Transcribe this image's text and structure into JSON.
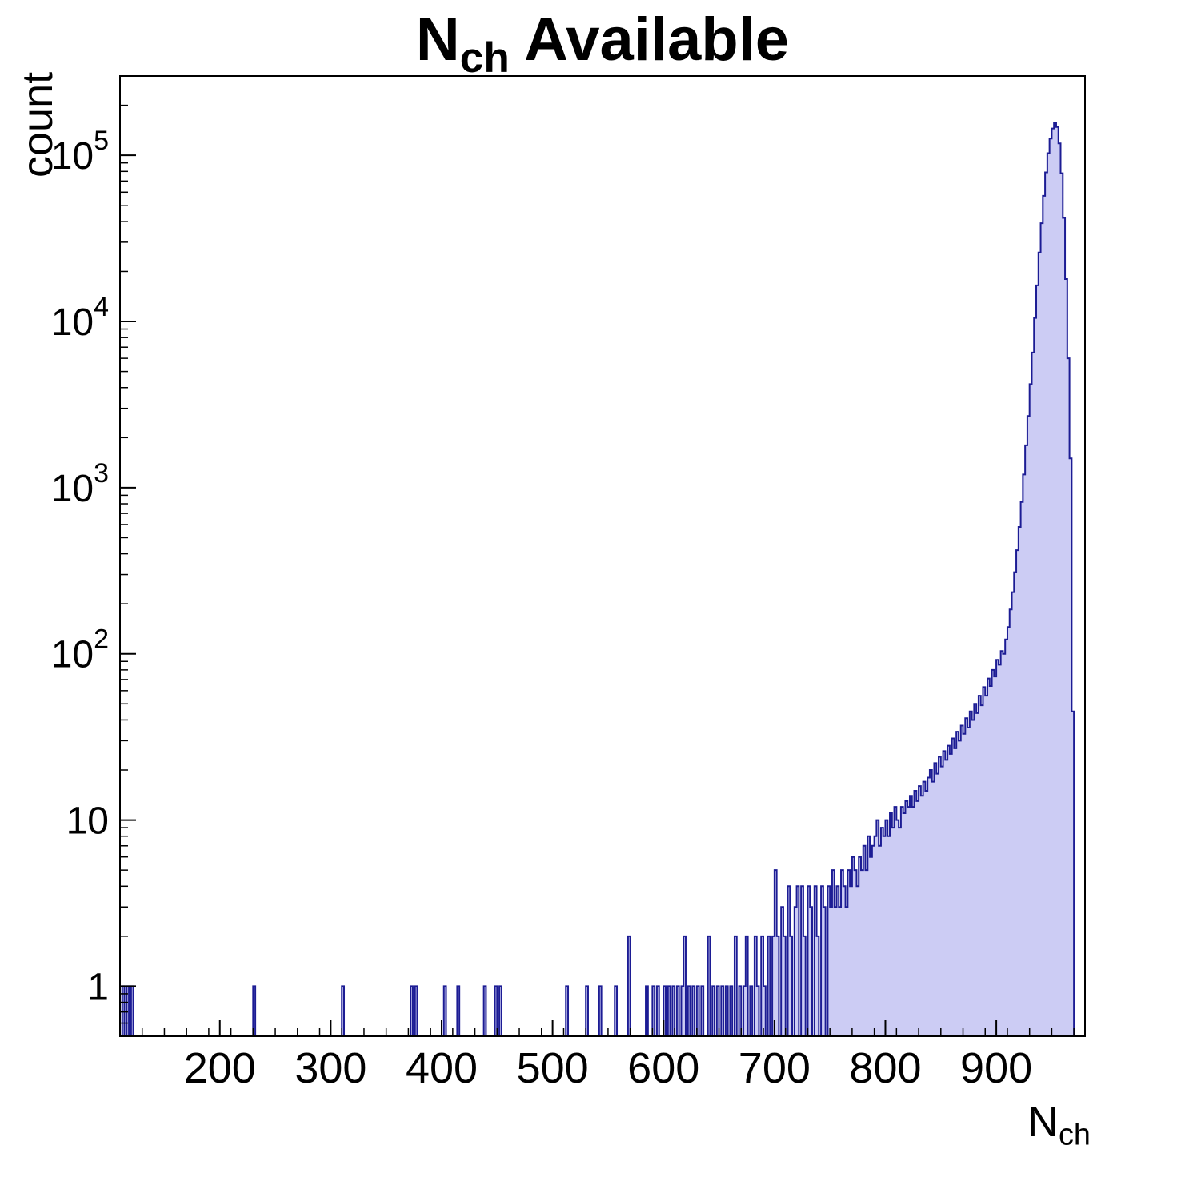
{
  "labels": {
    "title_main": "N",
    "title_sub": "ch",
    "title_rest": " Available",
    "xlabel_main": "N",
    "xlabel_sub": "ch",
    "ylabel": "count"
  },
  "chart_data": {
    "type": "bar",
    "title": "N_ch Available",
    "xlabel": "N_ch",
    "ylabel": "count",
    "y_scale": "log",
    "grid": "off",
    "legend": "none",
    "x_range": [
      110,
      980
    ],
    "y_range": [
      0.5,
      300000
    ],
    "bin_width": 2,
    "x_ticks": [
      200,
      300,
      400,
      500,
      600,
      700,
      800,
      900
    ],
    "x_minor_step": 20,
    "y_ticks": [
      {
        "v": 1,
        "label": "1"
      },
      {
        "v": 10,
        "label": "10"
      },
      {
        "v": 100,
        "base": "10",
        "exp": "2"
      },
      {
        "v": 1000,
        "base": "10",
        "exp": "3"
      },
      {
        "v": 10000,
        "base": "10",
        "exp": "4"
      },
      {
        "v": 100000,
        "base": "10",
        "exp": "5"
      }
    ],
    "fill_color": "#ccccf4",
    "line_color": "#1c1c94",
    "frame_color": "#000000",
    "bins": [
      [
        112,
        1
      ],
      [
        116,
        1
      ],
      [
        120,
        1
      ],
      [
        230,
        1
      ],
      [
        310,
        1
      ],
      [
        372,
        1
      ],
      [
        376,
        1
      ],
      [
        402,
        1
      ],
      [
        414,
        1
      ],
      [
        438,
        1
      ],
      [
        448,
        1
      ],
      [
        452,
        1
      ],
      [
        512,
        1
      ],
      [
        530,
        1
      ],
      [
        542,
        1
      ],
      [
        556,
        1
      ],
      [
        568,
        2
      ],
      [
        584,
        1
      ],
      [
        590,
        1
      ],
      [
        594,
        1
      ],
      [
        600,
        1
      ],
      [
        604,
        1
      ],
      [
        608,
        1
      ],
      [
        612,
        1
      ],
      [
        616,
        1
      ],
      [
        618,
        2
      ],
      [
        622,
        1
      ],
      [
        626,
        1
      ],
      [
        630,
        1
      ],
      [
        634,
        1
      ],
      [
        640,
        2
      ],
      [
        644,
        1
      ],
      [
        648,
        1
      ],
      [
        652,
        1
      ],
      [
        656,
        1
      ],
      [
        660,
        1
      ],
      [
        664,
        2
      ],
      [
        668,
        1
      ],
      [
        672,
        1
      ],
      [
        674,
        2
      ],
      [
        678,
        1
      ],
      [
        682,
        2
      ],
      [
        684,
        1
      ],
      [
        688,
        2
      ],
      [
        690,
        1
      ],
      [
        694,
        2
      ],
      [
        698,
        2
      ],
      [
        700,
        5
      ],
      [
        702,
        2
      ],
      [
        706,
        3
      ],
      [
        708,
        2
      ],
      [
        712,
        4
      ],
      [
        714,
        2
      ],
      [
        718,
        3
      ],
      [
        720,
        4
      ],
      [
        724,
        4
      ],
      [
        726,
        2
      ],
      [
        730,
        4
      ],
      [
        732,
        3
      ],
      [
        736,
        4
      ],
      [
        738,
        2
      ],
      [
        742,
        4
      ],
      [
        744,
        3
      ],
      [
        748,
        4
      ],
      [
        750,
        3
      ],
      [
        752,
        5
      ],
      [
        754,
        3
      ],
      [
        756,
        4
      ],
      [
        758,
        3
      ],
      [
        760,
        5
      ],
      [
        762,
        4
      ],
      [
        764,
        3
      ],
      [
        766,
        5
      ],
      [
        768,
        4
      ],
      [
        770,
        6
      ],
      [
        772,
        5
      ],
      [
        774,
        4
      ],
      [
        776,
        6
      ],
      [
        778,
        5
      ],
      [
        780,
        7
      ],
      [
        782,
        5
      ],
      [
        784,
        8
      ],
      [
        786,
        6
      ],
      [
        788,
        7
      ],
      [
        790,
        8
      ],
      [
        792,
        10
      ],
      [
        794,
        7
      ],
      [
        796,
        9
      ],
      [
        798,
        8
      ],
      [
        800,
        10
      ],
      [
        802,
        8
      ],
      [
        804,
        11
      ],
      [
        806,
        9
      ],
      [
        808,
        12
      ],
      [
        810,
        10
      ],
      [
        812,
        9
      ],
      [
        814,
        12
      ],
      [
        816,
        11
      ],
      [
        818,
        13
      ],
      [
        820,
        12
      ],
      [
        822,
        14
      ],
      [
        824,
        12
      ],
      [
        826,
        15
      ],
      [
        828,
        13
      ],
      [
        830,
        16
      ],
      [
        832,
        14
      ],
      [
        834,
        17
      ],
      [
        836,
        15
      ],
      [
        838,
        18
      ],
      [
        840,
        20
      ],
      [
        842,
        17
      ],
      [
        844,
        22
      ],
      [
        846,
        19
      ],
      [
        848,
        24
      ],
      [
        850,
        21
      ],
      [
        852,
        26
      ],
      [
        854,
        23
      ],
      [
        856,
        28
      ],
      [
        858,
        25
      ],
      [
        860,
        31
      ],
      [
        862,
        27
      ],
      [
        864,
        34
      ],
      [
        866,
        30
      ],
      [
        868,
        37
      ],
      [
        870,
        33
      ],
      [
        872,
        41
      ],
      [
        874,
        36
      ],
      [
        876,
        45
      ],
      [
        878,
        40
      ],
      [
        880,
        50
      ],
      [
        882,
        44
      ],
      [
        884,
        56
      ],
      [
        886,
        49
      ],
      [
        888,
        63
      ],
      [
        890,
        56
      ],
      [
        892,
        71
      ],
      [
        894,
        64
      ],
      [
        896,
        80
      ],
      [
        898,
        73
      ],
      [
        900,
        92
      ],
      [
        902,
        86
      ],
      [
        904,
        104
      ],
      [
        906,
        100
      ],
      [
        908,
        122
      ],
      [
        910,
        145
      ],
      [
        912,
        185
      ],
      [
        914,
        235
      ],
      [
        916,
        310
      ],
      [
        918,
        420
      ],
      [
        920,
        580
      ],
      [
        922,
        820
      ],
      [
        924,
        1200
      ],
      [
        926,
        1800
      ],
      [
        928,
        2700
      ],
      [
        930,
        4200
      ],
      [
        932,
        6500
      ],
      [
        934,
        10500
      ],
      [
        936,
        16500
      ],
      [
        938,
        26000
      ],
      [
        940,
        39000
      ],
      [
        942,
        57000
      ],
      [
        944,
        79000
      ],
      [
        946,
        103000
      ],
      [
        948,
        126000
      ],
      [
        950,
        145000
      ],
      [
        952,
        156000
      ],
      [
        954,
        148000
      ],
      [
        956,
        118000
      ],
      [
        958,
        78000
      ],
      [
        960,
        42000
      ],
      [
        962,
        18000
      ],
      [
        964,
        6000
      ],
      [
        966,
        1500
      ],
      [
        968,
        45
      ]
    ]
  }
}
